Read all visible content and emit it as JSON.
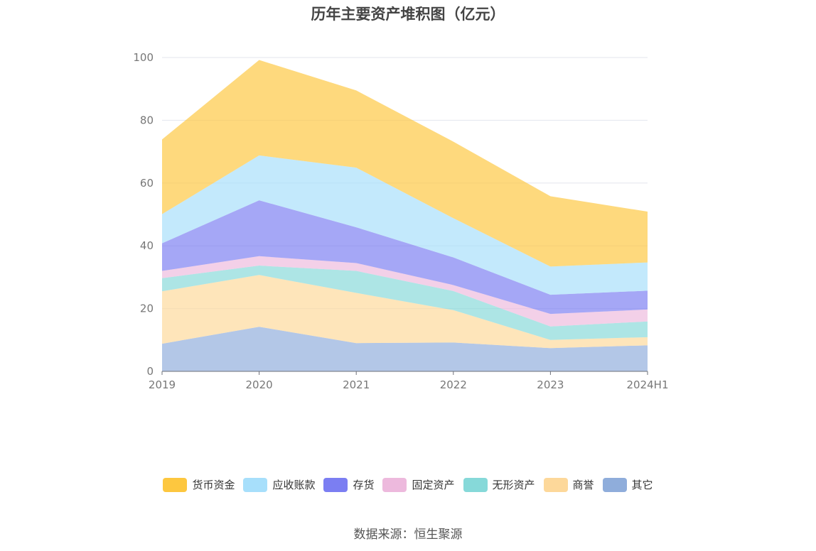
{
  "chart_data": {
    "type": "area",
    "stacked": true,
    "title": "历年主要资产堆积图（亿元）",
    "categories": [
      "2019",
      "2020",
      "2021",
      "2022",
      "2023",
      "2024H1"
    ],
    "ylim": [
      0,
      100
    ],
    "yticks": [
      0,
      20,
      40,
      60,
      80,
      100
    ],
    "grid": true,
    "legend_position": "bottom",
    "series": [
      {
        "name": "其它",
        "color": "#8FADDB",
        "values": [
          8.8,
          14.2,
          9.0,
          9.2,
          7.4,
          8.3
        ]
      },
      {
        "name": "商誉",
        "color": "#FDD89A",
        "values": [
          16.7,
          16.5,
          16.0,
          10.3,
          2.6,
          2.6
        ]
      },
      {
        "name": "无形资产",
        "color": "#86D9D9",
        "values": [
          4.2,
          3.0,
          7.0,
          6.1,
          4.3,
          5.0
        ]
      },
      {
        "name": "固定资产",
        "color": "#EDB9DD",
        "values": [
          2.3,
          3.0,
          2.5,
          1.9,
          4.0,
          3.8
        ]
      },
      {
        "name": "存货",
        "color": "#7B7EF2",
        "values": [
          8.8,
          17.8,
          11.4,
          8.8,
          6.1,
          6.0
        ]
      },
      {
        "name": "应收账款",
        "color": "#A7DFFB",
        "values": [
          9.3,
          14.3,
          19.0,
          12.5,
          9.0,
          9.0
        ]
      },
      {
        "name": "货币资金",
        "color": "#FDC73F",
        "values": [
          23.8,
          30.4,
          24.6,
          24.4,
          22.4,
          16.2
        ]
      }
    ],
    "legend_order": [
      "货币资金",
      "应收账款",
      "存货",
      "固定资产",
      "无形资产",
      "商誉",
      "其它"
    ]
  },
  "source": "数据来源：恒生聚源"
}
